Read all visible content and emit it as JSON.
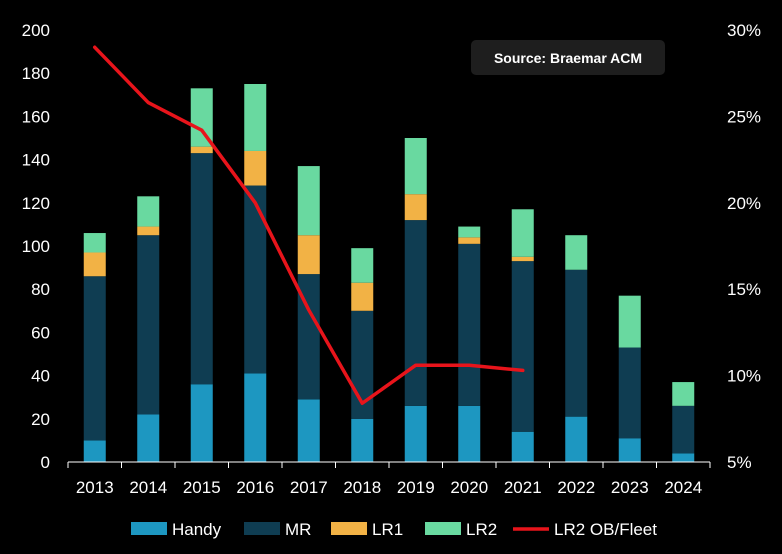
{
  "chart_data": {
    "type": "bar",
    "stacked": true,
    "categories": [
      "2013",
      "2014",
      "2015",
      "2016",
      "2017",
      "2018",
      "2019",
      "2020",
      "2021",
      "2022",
      "2023",
      "2024"
    ],
    "series": [
      {
        "name": "Handy",
        "color": "#1d97c1",
        "values": [
          10,
          22,
          36,
          41,
          29,
          20,
          26,
          26,
          14,
          21,
          11,
          4
        ]
      },
      {
        "name": "MR",
        "color": "#0f3d52",
        "values": [
          76,
          83,
          107,
          87,
          58,
          50,
          86,
          75,
          79,
          68,
          42,
          22
        ]
      },
      {
        "name": "LR1",
        "color": "#f2b245",
        "values": [
          11,
          4,
          3,
          16,
          18,
          13,
          12,
          3,
          2,
          0,
          0,
          0
        ]
      },
      {
        "name": "LR2",
        "color": "#69d9a0",
        "values": [
          9,
          14,
          27,
          31,
          32,
          16,
          26,
          5,
          22,
          16,
          24,
          11
        ]
      }
    ],
    "line_series": {
      "name": "LR2 OB/Fleet",
      "color": "#e8141b",
      "axis": "right",
      "categories": [
        "2013",
        "2014",
        "2015",
        "2016",
        "2017",
        "2018",
        "2019",
        "2020",
        "2021"
      ],
      "values": [
        29.0,
        25.8,
        24.2,
        20.0,
        13.8,
        8.4,
        10.6,
        10.6,
        10.3
      ]
    },
    "y_left": {
      "min": 0,
      "max": 200,
      "ticks": [
        "0",
        "20",
        "40",
        "60",
        "80",
        "100",
        "120",
        "140",
        "160",
        "180",
        "200"
      ]
    },
    "y_right": {
      "min": 5,
      "max": 30,
      "ticks": [
        "5%",
        "10%",
        "15%",
        "20%",
        "25%",
        "30%"
      ]
    },
    "legend_position": "bottom",
    "grid": false
  },
  "annotation": {
    "text": "Source: Braemar ACM"
  }
}
